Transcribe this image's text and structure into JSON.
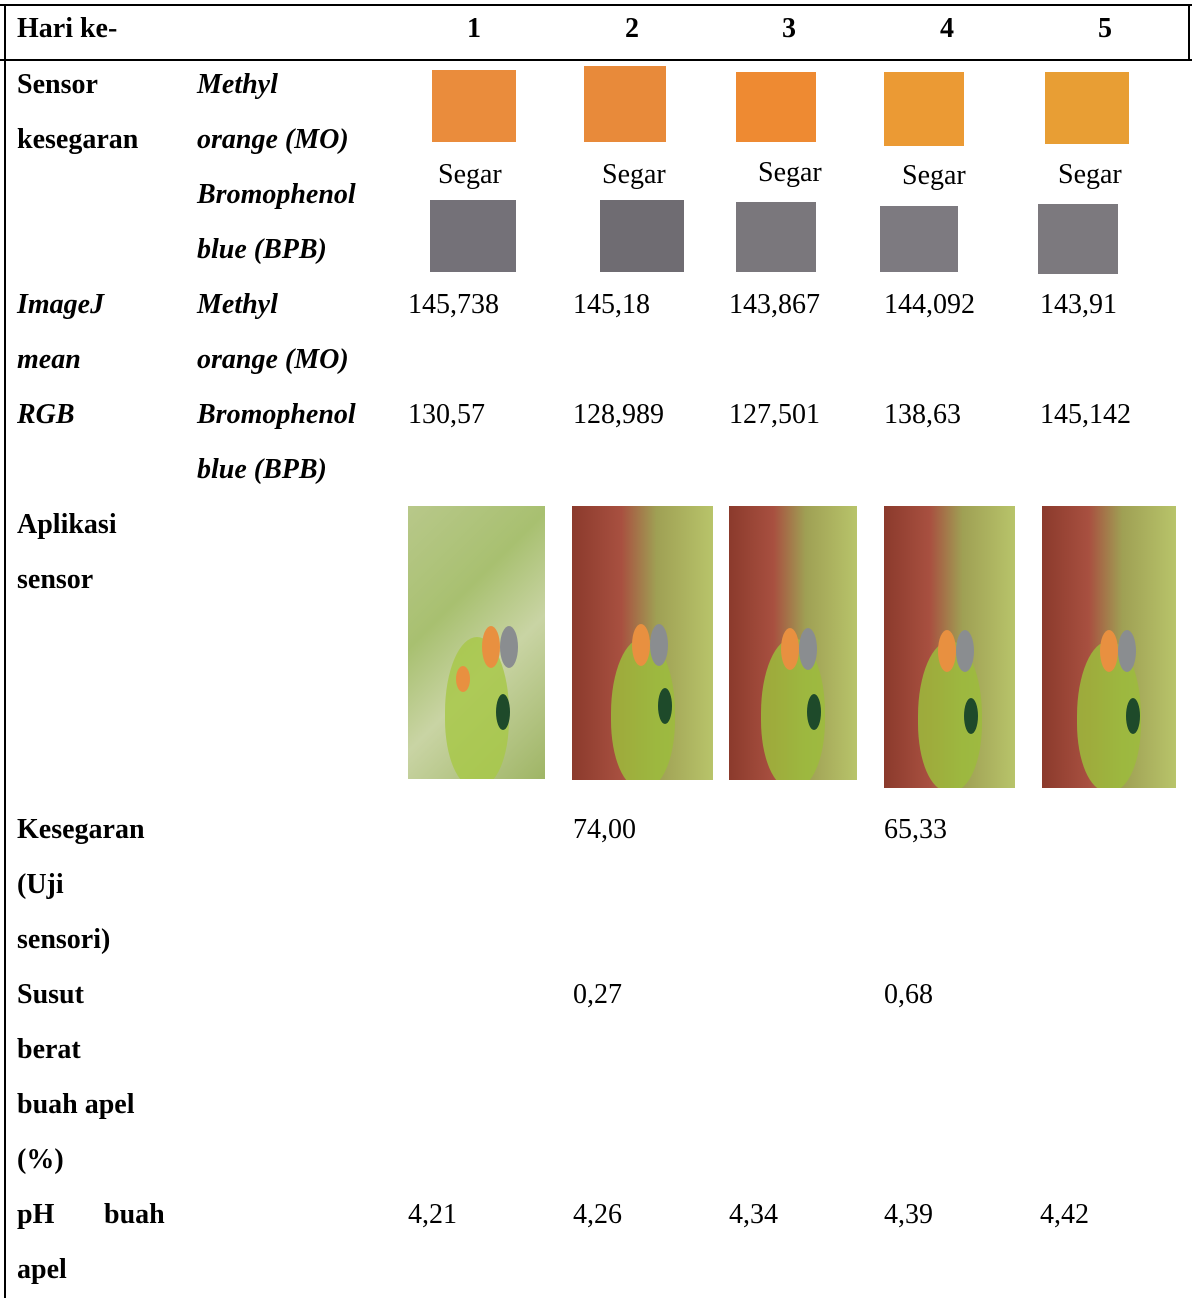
{
  "header": {
    "label": "Hari ke-",
    "days": [
      "1",
      "2",
      "3",
      "4",
      "5"
    ]
  },
  "sensor": {
    "label_line1": "Sensor",
    "label_line2": "kesegaran",
    "mo_line1": "Methyl",
    "mo_line2": "orange (MO)",
    "bpb_line1": "Bromophenol",
    "bpb_line2": "blue (BPB)",
    "status": [
      "Segar",
      "Segar",
      "Segar",
      "Segar",
      "Segar"
    ],
    "mo_colors": [
      "#ea8c3c",
      "#e88a3a",
      "#ee8a32",
      "#eb9a34",
      "#e89e34"
    ],
    "bpb_colors": [
      "#747178",
      "#6f6c72",
      "#7a777c",
      "#7d7a80",
      "#7c797e"
    ]
  },
  "imagej": {
    "label_line1": "ImageJ",
    "label_line2": "mean",
    "label_line3": "RGB",
    "mo_line1": "Methyl",
    "mo_line2": "orange (MO)",
    "bpb_line1": "Bromophenol",
    "bpb_line2": "blue (BPB)",
    "mo_values": [
      "145,738",
      "145,18",
      "143,867",
      "144,092",
      "143,91"
    ],
    "bpb_values": [
      "130,57",
      "128,989",
      "127,501",
      "138,63",
      "145,142"
    ]
  },
  "aplikasi": {
    "label_line1": "Aplikasi",
    "label_line2": "sensor"
  },
  "kesegaran": {
    "label_line1": "Kesegaran",
    "label_line2": "(Uji",
    "label_line3": "sensori)",
    "values": [
      "",
      "74,00",
      "",
      "65,33",
      ""
    ]
  },
  "susut": {
    "label_line1": "Susut",
    "label_line2": "berat",
    "label_line3": "buah apel",
    "label_line4": "(%)",
    "values": [
      "",
      "0,27",
      "",
      "0,68",
      ""
    ]
  },
  "ph": {
    "label_line1a": "pH",
    "label_line1b": "buah",
    "label_line2": "apel",
    "values": [
      "4,21",
      "4,26",
      "4,34",
      "4,39",
      "4,42"
    ]
  }
}
